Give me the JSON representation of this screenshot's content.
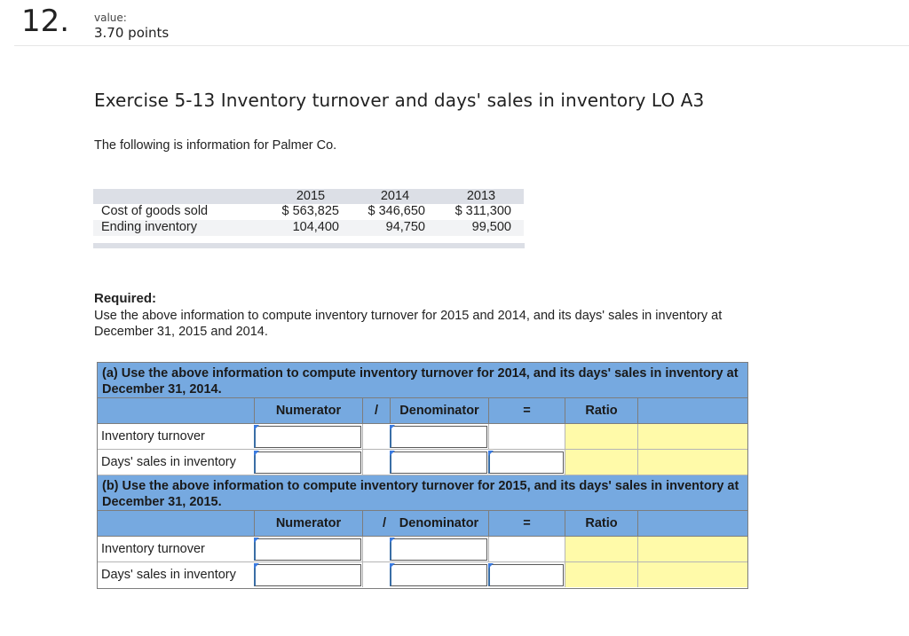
{
  "question": {
    "number": "12.",
    "value_label": "value:",
    "points": "3.70 points"
  },
  "exercise": {
    "title": "Exercise 5-13 Inventory turnover and days' sales in inventory LO A3",
    "intro": "The following is information for Palmer Co."
  },
  "data_table": {
    "headers": [
      "2015",
      "2014",
      "2013"
    ],
    "rows": [
      {
        "label": "Cost of goods sold",
        "values": [
          "$ 563,825",
          "$ 346,650",
          "$ 311,300"
        ]
      },
      {
        "label": "Ending inventory",
        "values": [
          "104,400",
          "94,750",
          "99,500"
        ]
      }
    ]
  },
  "required": {
    "heading": "Required:",
    "text": "Use the above information to compute inventory turnover for 2015 and 2014, and its days' sales in inventory at December 31, 2015 and 2014."
  },
  "part_a": {
    "instruction": "(a) Use the above information to compute inventory turnover for 2014, and its days' sales in inventory at December 31, 2014.",
    "headers": {
      "numerator": "Numerator",
      "slash": "/",
      "denominator": "Denominator",
      "equals": "=",
      "ratio": "Ratio"
    },
    "rows": [
      {
        "label": "Inventory turnover",
        "numerator": "",
        "denominator": "",
        "equals_value": ""
      },
      {
        "label": "Days' sales in inventory",
        "numerator": "",
        "denominator": "",
        "equals_value": ""
      }
    ]
  },
  "part_b": {
    "instruction": "(b) Use the above information to compute inventory turnover for 2015, and its days' sales in inventory at December 31, 2015.",
    "headers": {
      "numerator": "Numerator",
      "slash": "/",
      "denominator": "Denominator",
      "equals": "=",
      "ratio": "Ratio"
    },
    "rows": [
      {
        "label": "Inventory turnover",
        "numerator": "",
        "denominator": ""
      },
      {
        "label": "Days' sales in inventory",
        "numerator": "",
        "denominator": "",
        "equals_value": ""
      }
    ]
  },
  "colors": {
    "grid_header": "#76a9e0",
    "ratio_fill": "#fffaa9",
    "table_header": "#dcdfe6"
  }
}
